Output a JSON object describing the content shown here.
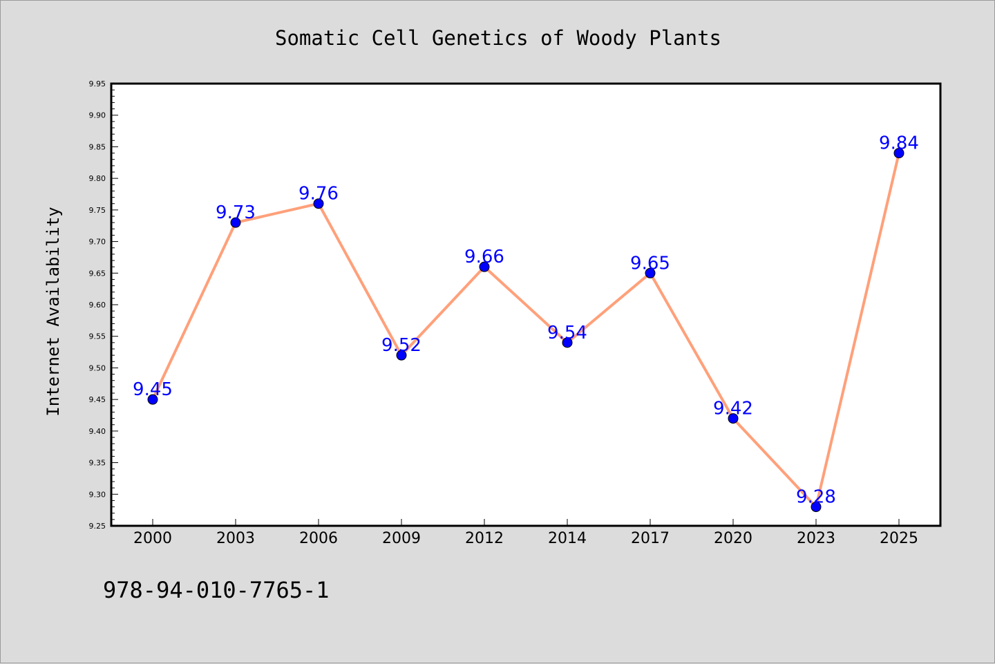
{
  "chart_data": {
    "type": "line",
    "title": "Somatic Cell Genetics of Woody Plants",
    "xlabel": "",
    "ylabel": "Internet Availability",
    "categories": [
      "2000",
      "2003",
      "2006",
      "2009",
      "2012",
      "2014",
      "2017",
      "2020",
      "2023",
      "2025"
    ],
    "series": [
      {
        "values": [
          9.45,
          9.73,
          9.76,
          9.52,
          9.66,
          9.54,
          9.65,
          9.42,
          9.28,
          9.84
        ],
        "data_labels": [
          "9.45",
          "9.73",
          "9.76",
          "9.52",
          "9.66",
          "9.54",
          "9.65",
          "9.42",
          "9.28",
          "9.84"
        ],
        "line_color": "#ffa07a",
        "marker_color": "#0000ff",
        "label_color": "#0000ff"
      }
    ],
    "ylim": [
      9.25,
      9.95
    ],
    "yticks": [
      "9.25",
      "9.30",
      "9.35",
      "9.40",
      "9.45",
      "9.50",
      "9.55",
      "9.60",
      "9.65",
      "9.70",
      "9.75",
      "9.80",
      "9.85",
      "9.90",
      "9.95"
    ],
    "grid": false,
    "legend": "none",
    "background_color": "#dcdcdc",
    "plot_background_color": "#ffffff"
  },
  "footer": {
    "isbn": "978-94-010-7765-1"
  }
}
